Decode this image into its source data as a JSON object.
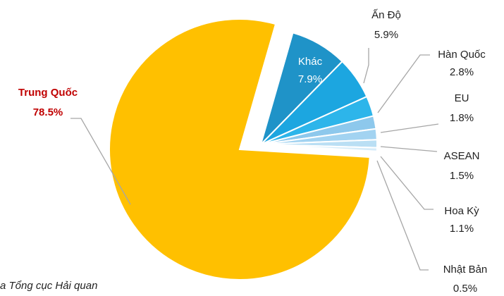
{
  "chart_data": {
    "type": "pie",
    "categories": [
      "Trung Quốc",
      "Khác",
      "Ấn Độ",
      "Hàn Quốc",
      "EU",
      "ASEAN",
      "Hoa Kỳ",
      "Nhật Bản"
    ],
    "values": [
      78.5,
      7.9,
      5.9,
      2.8,
      1.8,
      1.5,
      1.1,
      0.5
    ],
    "value_labels": [
      "78.5%",
      "7.9%",
      "5.9%",
      "2.8%",
      "1.8%",
      "1.5%",
      "1.1%",
      "0.5%"
    ],
    "colors": [
      "#FFC000",
      "#1F93C8",
      "#1CA6E0",
      "#2DB5EA",
      "#8DC8EC",
      "#A2D3F1",
      "#BADFF4",
      "#D6ECF9"
    ],
    "note": "a Tổng cục Hải quan"
  }
}
